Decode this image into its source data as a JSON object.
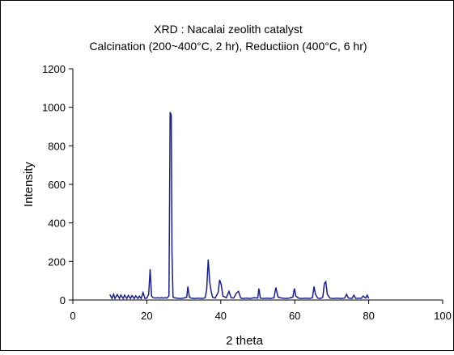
{
  "chart_data": {
    "type": "line",
    "title": "XRD : Nacalai zeolith catalyst",
    "subtitle": "Calcination (200~400°C,  2 hr), Reductiion (400°C,  6 hr)",
    "xlabel": "2 theta",
    "ylabel": "Intensity",
    "xlim": [
      0,
      100
    ],
    "ylim": [
      0,
      1200
    ],
    "xticks": [
      0,
      20,
      40,
      60,
      80,
      100
    ],
    "yticks": [
      0,
      200,
      400,
      600,
      800,
      1000,
      1200
    ],
    "grid": false,
    "line_color": "#1a1f8c",
    "frame_color": "#000000",
    "series": [
      {
        "x": [
          10,
          10.6,
          11,
          11.4,
          12,
          12.6,
          13,
          13.6,
          14,
          14.6,
          15,
          15.6,
          16,
          16.6,
          17,
          17.6,
          18,
          18.5,
          19,
          19.5,
          20,
          20.5,
          20.9,
          21.3,
          21.7,
          22.5,
          23,
          23.5,
          24,
          24.5,
          25,
          25.5,
          26,
          26.3,
          26.6,
          26.8,
          27.1,
          27.4,
          28,
          29,
          30,
          30.8,
          31.1,
          31.5,
          32,
          33,
          34,
          35,
          35.8,
          36.2,
          36.6,
          37,
          37.4,
          37.8,
          38.5,
          39.3,
          39.7,
          40.1,
          40.6,
          41.5,
          42.2,
          42.8,
          43.5,
          44.2,
          44.8,
          45.4,
          46,
          47,
          48,
          49,
          50,
          50.3,
          50.7,
          51.5,
          52.5,
          53.5,
          54.4,
          54.9,
          55.5,
          56.5,
          57.5,
          58.5,
          59.5,
          59.9,
          60.3,
          61,
          62,
          63,
          64,
          64.8,
          65.2,
          65.6,
          66.2,
          67,
          67.6,
          68,
          68.4,
          68.8,
          69.5,
          70.5,
          71.5,
          72.5,
          73.5,
          74,
          74.5,
          75.5,
          76,
          76.5,
          77.5,
          78,
          78.5,
          79.2,
          79.6,
          80
        ],
        "y": [
          28,
          8,
          30,
          8,
          28,
          8,
          26,
          8,
          25,
          8,
          24,
          8,
          23,
          8,
          22,
          8,
          20,
          8,
          38,
          8,
          10,
          30,
          160,
          20,
          12,
          10,
          12,
          10,
          12,
          10,
          12,
          10,
          22,
          975,
          960,
          250,
          15,
          12,
          10,
          8,
          10,
          15,
          70,
          15,
          10,
          8,
          10,
          8,
          12,
          55,
          210,
          95,
          45,
          15,
          10,
          40,
          105,
          80,
          20,
          12,
          45,
          12,
          10,
          35,
          45,
          10,
          8,
          10,
          8,
          12,
          10,
          60,
          10,
          8,
          10,
          8,
          12,
          65,
          15,
          10,
          8,
          10,
          15,
          60,
          20,
          10,
          8,
          10,
          8,
          12,
          70,
          30,
          10,
          8,
          15,
          85,
          95,
          30,
          10,
          8,
          10,
          8,
          10,
          30,
          10,
          8,
          25,
          8,
          10,
          8,
          20,
          10,
          25,
          8
        ]
      }
    ]
  }
}
